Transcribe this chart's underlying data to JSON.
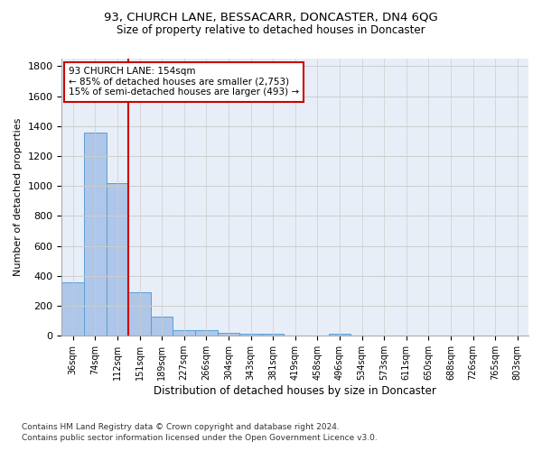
{
  "title": "93, CHURCH LANE, BESSACARR, DONCASTER, DN4 6QG",
  "subtitle": "Size of property relative to detached houses in Doncaster",
  "xlabel": "Distribution of detached houses by size in Doncaster",
  "ylabel": "Number of detached properties",
  "footnote1": "Contains HM Land Registry data © Crown copyright and database right 2024.",
  "footnote2": "Contains public sector information licensed under the Open Government Licence v3.0.",
  "bar_labels": [
    "36sqm",
    "74sqm",
    "112sqm",
    "151sqm",
    "189sqm",
    "227sqm",
    "266sqm",
    "304sqm",
    "343sqm",
    "381sqm",
    "419sqm",
    "458sqm",
    "496sqm",
    "534sqm",
    "573sqm",
    "611sqm",
    "650sqm",
    "688sqm",
    "726sqm",
    "765sqm",
    "803sqm"
  ],
  "bar_values": [
    355,
    1355,
    1020,
    290,
    125,
    40,
    35,
    20,
    15,
    15,
    0,
    0,
    15,
    0,
    0,
    0,
    0,
    0,
    0,
    0,
    0
  ],
  "bar_color": "#aec6e8",
  "bar_edge_color": "#5a9fd4",
  "property_label": "93 CHURCH LANE: 154sqm",
  "annotation_line1": "← 85% of detached houses are smaller (2,753)",
  "annotation_line2": "15% of semi-detached houses are larger (493) →",
  "annotation_box_color": "#ffffff",
  "annotation_box_edge": "#cc0000",
  "property_line_color": "#cc0000",
  "ylim": [
    0,
    1850
  ],
  "yticks": [
    0,
    200,
    400,
    600,
    800,
    1000,
    1200,
    1400,
    1600,
    1800
  ],
  "grid_color": "#cccccc",
  "background_color": "#e8eef8"
}
